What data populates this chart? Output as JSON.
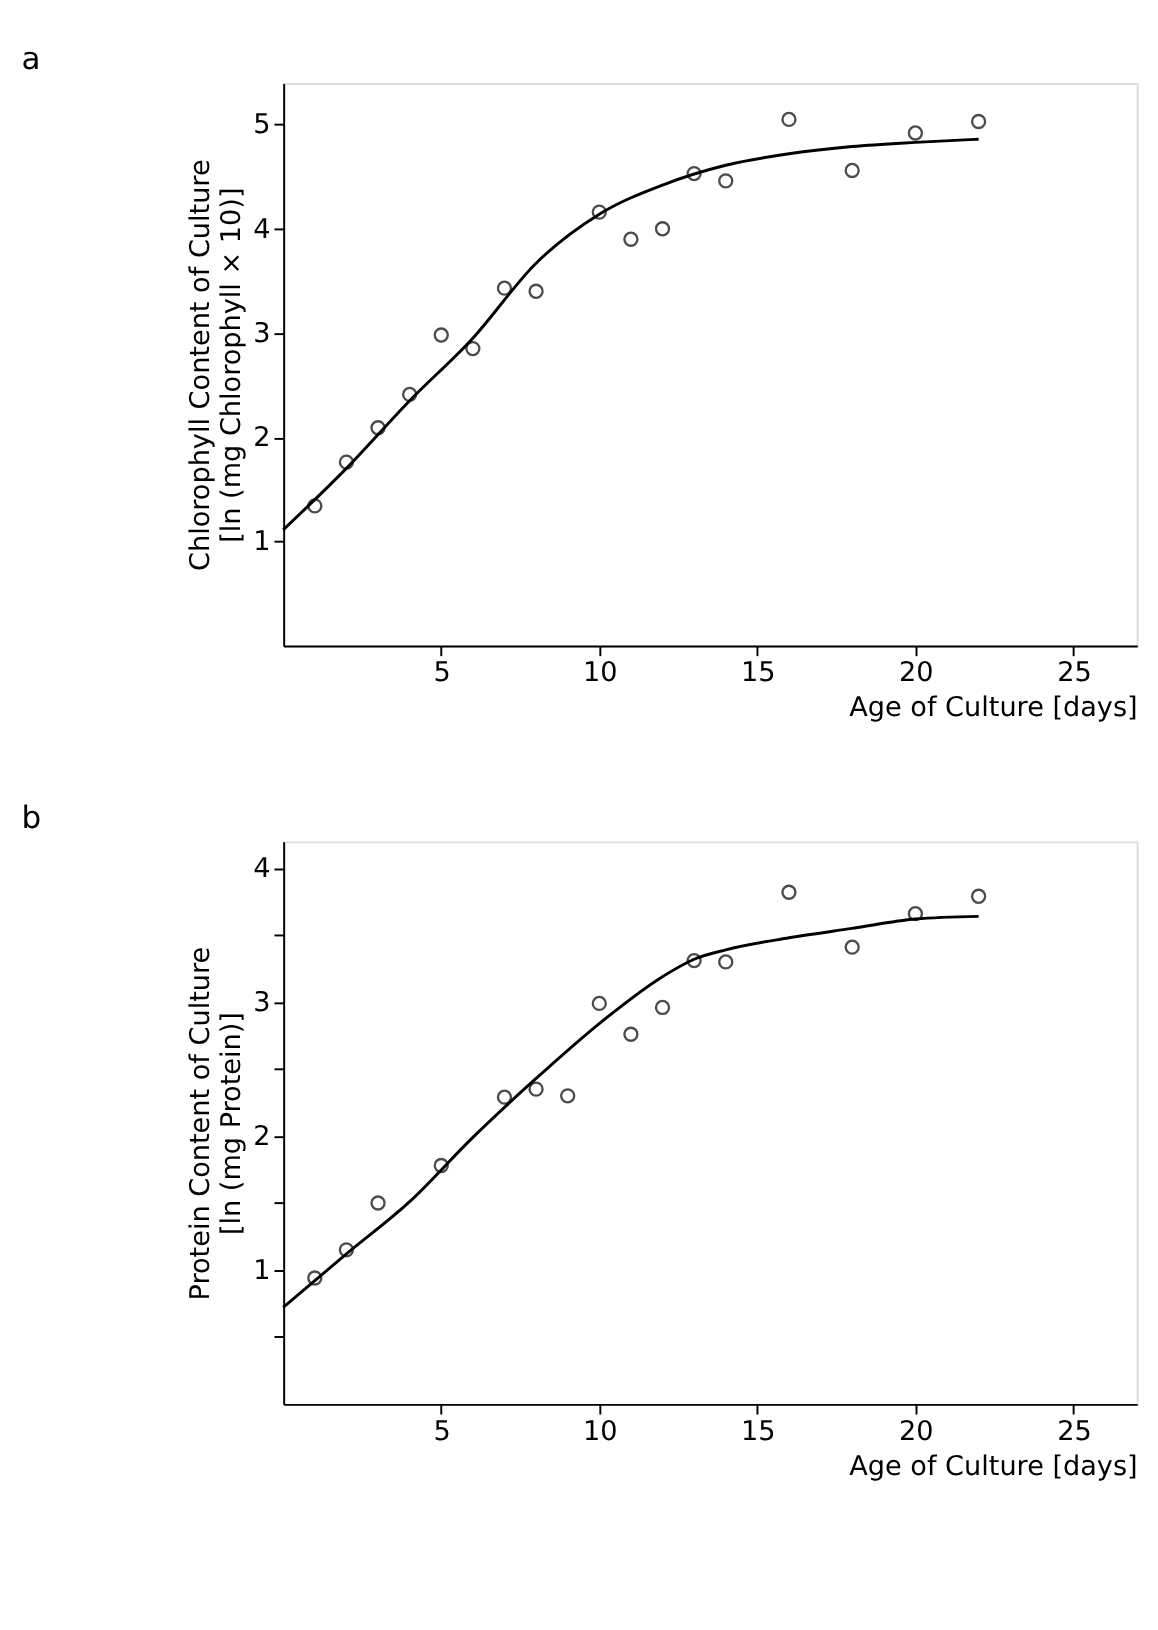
{
  "chart_data": [
    {
      "type": "scatter",
      "annotations": [
        "a"
      ],
      "xlabel": "Age of Culture [days]",
      "ylabel": "Chlorophyll Content of Culture\n[ln (mg Chlorophyll × 10)]",
      "xlim": [
        0,
        27
      ],
      "xticks": [
        5,
        10,
        15,
        20,
        25
      ],
      "ylim": [
        0,
        5.4
      ],
      "yticks": [
        1,
        2,
        3,
        4,
        5
      ],
      "grid": false,
      "series": [
        {
          "color": "#000000",
          "marker": "circle",
          "x": [
            1,
            2,
            3,
            4,
            5,
            6,
            7,
            8,
            10,
            11,
            12,
            13,
            14,
            16,
            18,
            20,
            22
          ],
          "values": [
            1.34,
            1.76,
            2.09,
            2.41,
            2.98,
            2.85,
            3.43,
            3.4,
            4.16,
            3.9,
            4.0,
            4.53,
            4.46,
            5.05,
            4.56,
            4.92,
            5.03
          ]
        },
        {
          "type": "line",
          "color": "#000000",
          "marker": "none",
          "line_style": "solid",
          "x": [
            0,
            2,
            4,
            6,
            8,
            10,
            12,
            14,
            16,
            18,
            20,
            22
          ],
          "values": [
            1.11,
            1.7,
            2.35,
            2.95,
            3.67,
            4.14,
            4.42,
            4.61,
            4.72,
            4.79,
            4.83,
            4.86
          ]
        }
      ]
    },
    {
      "type": "scatter",
      "annotations": [
        "b"
      ],
      "xlabel": "Age of Culture [days]",
      "ylabel": "Protein Content of Culture\n[ln (mg Protein)]",
      "xlim": [
        0,
        27
      ],
      "xticks": [
        5,
        10,
        15,
        20,
        25
      ],
      "ylim": [
        0,
        4.2
      ],
      "yticks": [
        {
          "value": 0.5,
          "label": null
        },
        1,
        {
          "value": 1.5,
          "label": null
        },
        2,
        {
          "value": 2.5,
          "label": null
        },
        3,
        {
          "value": 3.5,
          "label": null
        },
        4
      ],
      "grid": false,
      "series": [
        {
          "color": "#000000",
          "marker": "circle",
          "x": [
            1,
            2,
            3,
            5,
            7,
            8,
            9,
            10,
            11,
            12,
            13,
            14,
            16,
            18,
            20,
            22
          ],
          "values": [
            0.94,
            1.15,
            1.5,
            1.78,
            2.29,
            2.35,
            2.3,
            2.99,
            2.76,
            2.96,
            3.31,
            3.3,
            3.82,
            3.41,
            3.66,
            3.79
          ]
        },
        {
          "type": "line",
          "color": "#000000",
          "marker": "none",
          "line_style": "solid",
          "x": [
            0,
            2,
            4,
            6,
            8,
            10,
            12,
            13,
            14,
            16,
            18,
            20,
            22
          ],
          "values": [
            0.72,
            1.12,
            1.51,
            1.99,
            2.43,
            2.84,
            3.19,
            3.32,
            3.39,
            3.48,
            3.55,
            3.62,
            3.64
          ]
        }
      ]
    }
  ]
}
